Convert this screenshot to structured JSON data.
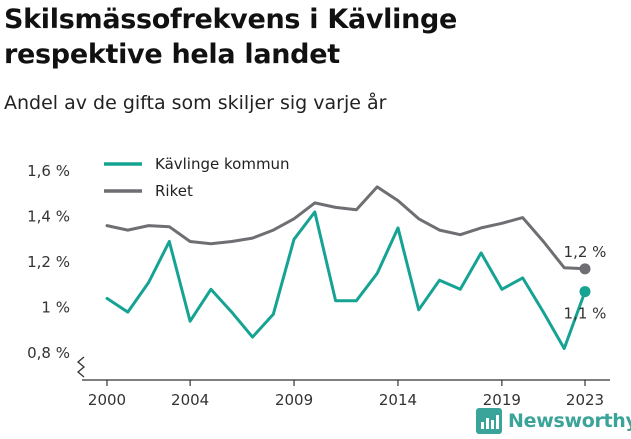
{
  "title": "Skilsmässofrekvens i Kävlinge respektive hela landet",
  "subtitle": "Andel av de gifta som skiljer sig varje år",
  "brand": {
    "name": "Newsworthy",
    "icon": "newsworthy-logo-icon",
    "color": "#3aa39a"
  },
  "chart_data": {
    "type": "line",
    "ylim": [
      0.8,
      1.6
    ],
    "yticks": [
      0.8,
      1.0,
      1.2,
      1.4,
      1.6
    ],
    "ytick_labels": [
      "0,8 %",
      "1 %",
      "1,2 %",
      "1,4 %",
      "1,6 %"
    ],
    "xlim": [
      2000,
      2023
    ],
    "xticks": [
      2000,
      2004,
      2009,
      2014,
      2019,
      2023
    ],
    "xtick_labels": [
      "2000",
      "2004",
      "2009",
      "2014",
      "2019",
      "2023"
    ],
    "grid": false,
    "legend_position": "top-left",
    "x": [
      2000,
      2001,
      2002,
      2003,
      2004,
      2005,
      2006,
      2007,
      2008,
      2009,
      2010,
      2011,
      2012,
      2013,
      2014,
      2015,
      2016,
      2017,
      2018,
      2019,
      2020,
      2021,
      2022,
      2023
    ],
    "series": [
      {
        "name": "Kävlinge kommun",
        "color": "#16a394",
        "values": [
          1.04,
          0.98,
          1.11,
          1.29,
          0.94,
          1.08,
          0.98,
          0.87,
          0.97,
          1.3,
          1.42,
          1.03,
          1.03,
          1.15,
          1.35,
          0.99,
          1.12,
          1.08,
          1.24,
          1.08,
          1.13,
          0.98,
          0.82,
          1.07
        ],
        "end_label": "1,1 %"
      },
      {
        "name": "Riket",
        "color": "#6f6f73",
        "values": [
          1.36,
          1.34,
          1.36,
          1.355,
          1.29,
          1.28,
          1.29,
          1.305,
          1.34,
          1.39,
          1.46,
          1.44,
          1.43,
          1.53,
          1.47,
          1.39,
          1.34,
          1.32,
          1.35,
          1.37,
          1.395,
          1.29,
          1.175,
          1.17
        ],
        "end_label": "1,2 %"
      }
    ]
  }
}
